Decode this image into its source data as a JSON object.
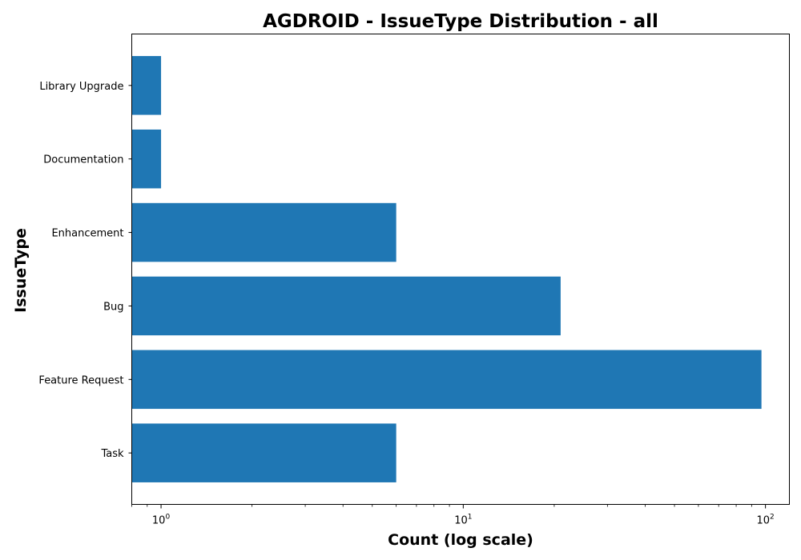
{
  "chart_data": {
    "type": "bar",
    "orientation": "horizontal",
    "title": "AGDROID - IssueType Distribution - all",
    "xlabel": "Count (log scale)",
    "ylabel": "IssueType",
    "x_scale": "log",
    "xlim": [
      0.8,
      120
    ],
    "x_ticks": [
      {
        "value": 1,
        "base": "10",
        "exp": "0"
      },
      {
        "value": 10,
        "base": "10",
        "exp": "1"
      },
      {
        "value": 100,
        "base": "10",
        "exp": "2"
      }
    ],
    "categories": [
      "Task",
      "Feature Request",
      "Bug",
      "Enhancement",
      "Documentation",
      "Library Upgrade"
    ],
    "values": [
      6,
      97,
      21,
      6,
      1,
      1
    ],
    "bar_color": "#1f77b4",
    "grid": false,
    "legend": "none"
  }
}
